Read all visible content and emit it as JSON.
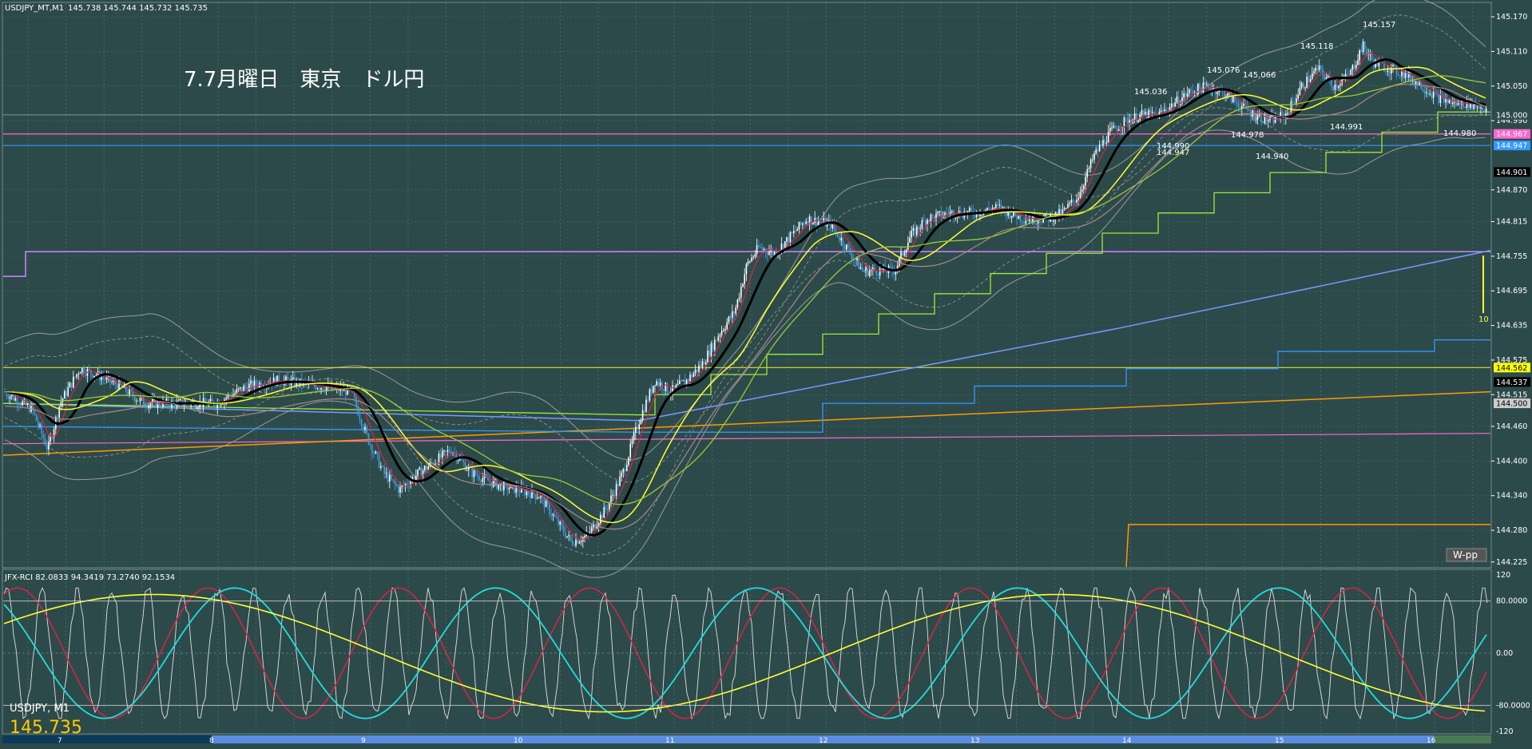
{
  "header": {
    "symbol_info": "USDJPY_MT,M1",
    "ohlc": "145.738 145.744 145.732 145.735"
  },
  "annotation": {
    "title": "7.7月曜日　東京　ドル円"
  },
  "price_axis": {
    "labels": [
      "145.170",
      "145.110",
      "145.050",
      "144.990",
      "144.870",
      "144.815",
      "144.755",
      "144.695",
      "144.635",
      "144.575",
      "144.515",
      "144.460",
      "144.400",
      "144.340",
      "144.280",
      "144.225"
    ],
    "range": [
      144.215,
      145.195
    ]
  },
  "price_tags": [
    {
      "value": "145.000",
      "price": 145.0,
      "bg": "#2d4a4a",
      "fg": "#ffffff"
    },
    {
      "value": "144.967",
      "price": 144.967,
      "bg": "#ff66cc",
      "fg": "#ffffff"
    },
    {
      "value": "144.947",
      "price": 144.947,
      "bg": "#3399ff",
      "fg": "#ffffff"
    },
    {
      "value": "144.901",
      "price": 144.901,
      "bg": "#000000",
      "fg": "#ffffff"
    },
    {
      "value": "144.562",
      "price": 144.562,
      "bg": "#ffff00",
      "fg": "#000000"
    },
    {
      "value": "144.537",
      "price": 144.537,
      "bg": "#000000",
      "fg": "#ffffff"
    },
    {
      "value": "144.500",
      "price": 144.5,
      "bg": "#cccccc",
      "fg": "#000000"
    }
  ],
  "peak_labels": [
    {
      "text": "145.157",
      "x": 1706,
      "y": 34
    },
    {
      "text": "145.118",
      "x": 1628,
      "y": 61
    },
    {
      "text": "145.076",
      "x": 1511,
      "y": 91
    },
    {
      "text": "145.066",
      "x": 1556,
      "y": 97
    },
    {
      "text": "145.036",
      "x": 1420,
      "y": 118
    },
    {
      "text": "144.991",
      "x": 1665,
      "y": 162
    },
    {
      "text": "144.980",
      "x": 1807,
      "y": 170
    },
    {
      "text": "144.978",
      "x": 1541,
      "y": 172
    },
    {
      "text": "144.947",
      "x": 1448,
      "y": 194
    },
    {
      "text": "144.940",
      "x": 1572,
      "y": 199
    },
    {
      "text": "144.990",
      "x": 1448,
      "y": 186
    }
  ],
  "indicator": {
    "name": "JFX-RCI 82.0833 94.3419 73.2740 92.1534",
    "axis": [
      "120",
      "80.0000",
      "0.00",
      "-80.0000",
      "-120"
    ]
  },
  "bottom_left": {
    "symbol": "USDJPY, M1",
    "price": "145.735"
  },
  "time_axis": [
    "7",
    "8",
    "9",
    "10",
    "11",
    "12",
    "13",
    "14",
    "15",
    "16"
  ],
  "w_pp_label": "W-pp",
  "gap_label": "10",
  "colors": {
    "background": "#2d4a4a",
    "bull_candle": "#ffffff",
    "bear_candle": "#3aa0e8",
    "ma_black": "#000000",
    "ma_yellow": "#ffff33",
    "ma_red": "#dd2244",
    "bollinger": "#9a9a9a",
    "rci_cyan": "#22dddd",
    "rci_red": "#dd2244",
    "rci_yellow": "#ffff33",
    "rci_white": "#e0e0e0"
  }
}
